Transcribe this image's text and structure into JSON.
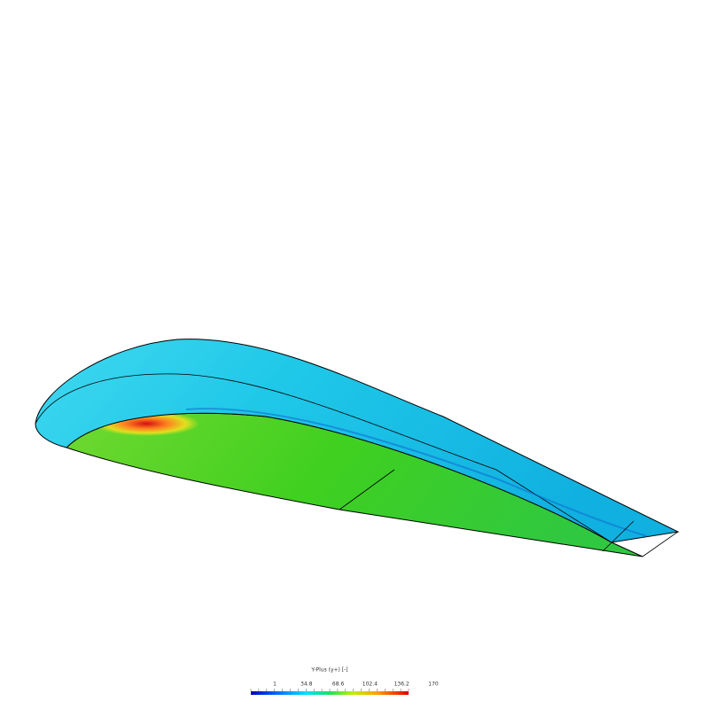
{
  "legend": {
    "title": "Y-Plus (y+) [-]",
    "ticks": [
      "1",
      "34.8",
      "68.6",
      "102.4",
      "136.2",
      "170"
    ]
  }
}
